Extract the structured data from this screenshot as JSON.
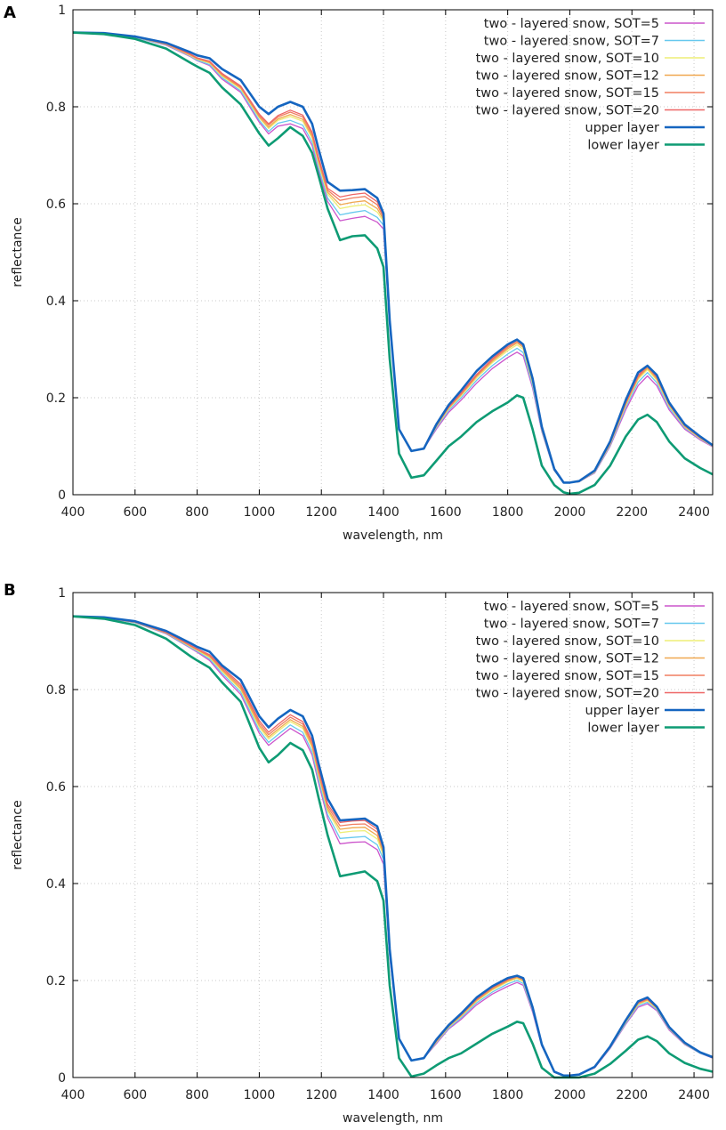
{
  "chart_data": [
    {
      "type": "line",
      "panel": "A",
      "xlabel": "wavelength, nm",
      "ylabel": "reflectance",
      "xlim": [
        400,
        2460
      ],
      "ylim": [
        0,
        1
      ],
      "xticks": [
        400,
        600,
        800,
        1000,
        1200,
        1400,
        1600,
        1800,
        2000,
        2200,
        2400
      ],
      "yticks": [
        0,
        0.2,
        0.4,
        0.6,
        0.8,
        1
      ],
      "ytick_labels": [
        "0",
        "0.2",
        "0.4",
        "0.6",
        "0.8",
        "1"
      ],
      "grid": true,
      "legend_position": "top-right",
      "x": [
        400,
        500,
        600,
        700,
        780,
        800,
        840,
        880,
        940,
        1000,
        1030,
        1060,
        1100,
        1140,
        1170,
        1190,
        1220,
        1260,
        1300,
        1340,
        1380,
        1400,
        1420,
        1450,
        1490,
        1530,
        1570,
        1610,
        1650,
        1700,
        1750,
        1800,
        1830,
        1850,
        1880,
        1910,
        1950,
        1980,
        2000,
        2030,
        2080,
        2130,
        2180,
        2220,
        2250,
        2280,
        2320,
        2370,
        2420,
        2460
      ],
      "series": [
        {
          "name": "two - layered snow, SOT=5",
          "color": "#cc55cc",
          "values": [
            0.953,
            0.951,
            0.943,
            0.927,
            0.903,
            0.895,
            0.885,
            0.857,
            0.83,
            0.768,
            0.744,
            0.76,
            0.765,
            0.755,
            0.72,
            0.67,
            0.605,
            0.565,
            0.57,
            0.574,
            0.562,
            0.548,
            0.35,
            0.135,
            0.09,
            0.095,
            0.135,
            0.17,
            0.195,
            0.23,
            0.26,
            0.283,
            0.294,
            0.286,
            0.22,
            0.13,
            0.05,
            0.025,
            0.025,
            0.027,
            0.045,
            0.1,
            0.175,
            0.225,
            0.245,
            0.225,
            0.175,
            0.135,
            0.113,
            0.099
          ]
        },
        {
          "name": "two - layered snow, SOT=7",
          "color": "#66c8ee",
          "values": [
            0.953,
            0.951,
            0.943,
            0.928,
            0.904,
            0.896,
            0.887,
            0.86,
            0.833,
            0.772,
            0.749,
            0.766,
            0.772,
            0.762,
            0.727,
            0.677,
            0.612,
            0.577,
            0.582,
            0.586,
            0.572,
            0.556,
            0.352,
            0.135,
            0.09,
            0.095,
            0.138,
            0.174,
            0.2,
            0.236,
            0.266,
            0.29,
            0.302,
            0.293,
            0.225,
            0.132,
            0.05,
            0.025,
            0.025,
            0.027,
            0.046,
            0.102,
            0.18,
            0.232,
            0.252,
            0.231,
            0.179,
            0.138,
            0.115,
            0.1
          ]
        },
        {
          "name": "two - layered snow, SOT=10",
          "color": "#eeee77",
          "values": [
            0.953,
            0.951,
            0.944,
            0.929,
            0.905,
            0.898,
            0.89,
            0.863,
            0.837,
            0.777,
            0.755,
            0.772,
            0.78,
            0.77,
            0.735,
            0.685,
            0.62,
            0.59,
            0.595,
            0.598,
            0.583,
            0.564,
            0.355,
            0.135,
            0.09,
            0.095,
            0.14,
            0.177,
            0.204,
            0.241,
            0.272,
            0.297,
            0.309,
            0.3,
            0.23,
            0.134,
            0.051,
            0.025,
            0.025,
            0.027,
            0.047,
            0.104,
            0.184,
            0.238,
            0.258,
            0.236,
            0.183,
            0.14,
            0.116,
            0.1
          ]
        },
        {
          "name": "two - layered snow, SOT=12",
          "color": "#f0a850",
          "values": [
            0.953,
            0.951,
            0.944,
            0.929,
            0.906,
            0.899,
            0.891,
            0.865,
            0.839,
            0.779,
            0.758,
            0.775,
            0.784,
            0.774,
            0.739,
            0.689,
            0.624,
            0.598,
            0.603,
            0.606,
            0.59,
            0.568,
            0.356,
            0.135,
            0.09,
            0.095,
            0.141,
            0.179,
            0.206,
            0.244,
            0.275,
            0.301,
            0.313,
            0.304,
            0.233,
            0.135,
            0.051,
            0.025,
            0.025,
            0.027,
            0.048,
            0.105,
            0.186,
            0.241,
            0.261,
            0.239,
            0.185,
            0.141,
            0.117,
            0.101
          ]
        },
        {
          "name": "two - layered snow, SOT=15",
          "color": "#f07e60",
          "values": [
            0.953,
            0.951,
            0.944,
            0.93,
            0.907,
            0.9,
            0.893,
            0.867,
            0.841,
            0.782,
            0.762,
            0.779,
            0.789,
            0.779,
            0.744,
            0.694,
            0.628,
            0.607,
            0.612,
            0.615,
            0.598,
            0.572,
            0.357,
            0.135,
            0.09,
            0.095,
            0.142,
            0.18,
            0.208,
            0.246,
            0.278,
            0.304,
            0.316,
            0.307,
            0.235,
            0.136,
            0.051,
            0.025,
            0.025,
            0.027,
            0.048,
            0.106,
            0.188,
            0.243,
            0.264,
            0.241,
            0.186,
            0.142,
            0.117,
            0.101
          ]
        },
        {
          "name": "two - layered snow, SOT=20",
          "color": "#ee6666",
          "values": [
            0.953,
            0.951,
            0.944,
            0.93,
            0.908,
            0.901,
            0.894,
            0.869,
            0.843,
            0.785,
            0.765,
            0.782,
            0.793,
            0.783,
            0.748,
            0.698,
            0.632,
            0.614,
            0.619,
            0.622,
            0.604,
            0.576,
            0.358,
            0.135,
            0.09,
            0.095,
            0.143,
            0.181,
            0.21,
            0.248,
            0.28,
            0.307,
            0.319,
            0.31,
            0.237,
            0.137,
            0.052,
            0.025,
            0.025,
            0.027,
            0.049,
            0.107,
            0.19,
            0.246,
            0.266,
            0.243,
            0.188,
            0.143,
            0.118,
            0.101
          ]
        },
        {
          "name": "upper layer",
          "color": "#1565c0",
          "values": [
            0.953,
            0.952,
            0.945,
            0.932,
            0.912,
            0.906,
            0.9,
            0.878,
            0.855,
            0.8,
            0.785,
            0.8,
            0.81,
            0.8,
            0.765,
            0.715,
            0.645,
            0.627,
            0.628,
            0.63,
            0.612,
            0.58,
            0.36,
            0.135,
            0.09,
            0.095,
            0.145,
            0.185,
            0.215,
            0.255,
            0.285,
            0.31,
            0.32,
            0.31,
            0.24,
            0.14,
            0.053,
            0.025,
            0.025,
            0.028,
            0.05,
            0.11,
            0.195,
            0.252,
            0.266,
            0.247,
            0.19,
            0.145,
            0.12,
            0.102
          ]
        },
        {
          "name": "lower layer",
          "color": "#0e9b74",
          "values": [
            0.953,
            0.95,
            0.94,
            0.92,
            0.89,
            0.883,
            0.87,
            0.84,
            0.805,
            0.745,
            0.72,
            0.735,
            0.758,
            0.74,
            0.705,
            0.66,
            0.59,
            0.525,
            0.533,
            0.535,
            0.508,
            0.47,
            0.28,
            0.085,
            0.035,
            0.04,
            0.07,
            0.1,
            0.12,
            0.15,
            0.172,
            0.19,
            0.205,
            0.2,
            0.135,
            0.06,
            0.02,
            0.005,
            0.002,
            0.004,
            0.02,
            0.06,
            0.12,
            0.155,
            0.165,
            0.15,
            0.11,
            0.075,
            0.055,
            0.042
          ]
        }
      ]
    },
    {
      "type": "line",
      "panel": "B",
      "xlabel": "wavelength, nm",
      "ylabel": "reflectance",
      "xlim": [
        400,
        2460
      ],
      "ylim": [
        0,
        1
      ],
      "xticks": [
        400,
        600,
        800,
        1000,
        1200,
        1400,
        1600,
        1800,
        2000,
        2200,
        2400
      ],
      "yticks": [
        0,
        0.2,
        0.4,
        0.6,
        0.8,
        1
      ],
      "ytick_labels": [
        "0",
        "0.2",
        "0.4",
        "0.6",
        "0.8",
        "1"
      ],
      "grid": true,
      "legend_position": "top-right",
      "x": [
        400,
        500,
        600,
        700,
        780,
        800,
        840,
        880,
        940,
        1000,
        1030,
        1060,
        1100,
        1140,
        1170,
        1190,
        1220,
        1260,
        1300,
        1340,
        1380,
        1400,
        1420,
        1450,
        1490,
        1530,
        1570,
        1610,
        1650,
        1700,
        1750,
        1800,
        1830,
        1850,
        1880,
        1910,
        1950,
        1980,
        2000,
        2030,
        2080,
        2130,
        2180,
        2220,
        2250,
        2280,
        2320,
        2370,
        2420,
        2460
      ],
      "series": [
        {
          "name": "two - layered snow, SOT=5",
          "color": "#cc55cc",
          "values": [
            0.951,
            0.948,
            0.938,
            0.915,
            0.885,
            0.877,
            0.86,
            0.83,
            0.79,
            0.71,
            0.685,
            0.7,
            0.72,
            0.705,
            0.665,
            0.61,
            0.535,
            0.482,
            0.485,
            0.486,
            0.47,
            0.44,
            0.25,
            0.08,
            0.035,
            0.04,
            0.07,
            0.1,
            0.12,
            0.15,
            0.172,
            0.188,
            0.196,
            0.19,
            0.135,
            0.065,
            0.012,
            0.004,
            0.004,
            0.006,
            0.02,
            0.06,
            0.11,
            0.145,
            0.152,
            0.138,
            0.098,
            0.068,
            0.05,
            0.04
          ]
        },
        {
          "name": "two - layered snow, SOT=7",
          "color": "#66c8ee",
          "values": [
            0.951,
            0.948,
            0.938,
            0.916,
            0.886,
            0.879,
            0.863,
            0.834,
            0.795,
            0.716,
            0.691,
            0.707,
            0.727,
            0.712,
            0.672,
            0.617,
            0.542,
            0.493,
            0.495,
            0.497,
            0.48,
            0.45,
            0.254,
            0.08,
            0.035,
            0.04,
            0.072,
            0.102,
            0.123,
            0.154,
            0.176,
            0.193,
            0.2,
            0.194,
            0.138,
            0.066,
            0.012,
            0.004,
            0.004,
            0.006,
            0.021,
            0.061,
            0.112,
            0.148,
            0.155,
            0.14,
            0.1,
            0.069,
            0.05,
            0.041
          ]
        },
        {
          "name": "two - layered snow, SOT=10",
          "color": "#eeee77",
          "values": [
            0.951,
            0.948,
            0.939,
            0.917,
            0.888,
            0.881,
            0.866,
            0.838,
            0.8,
            0.722,
            0.698,
            0.714,
            0.734,
            0.72,
            0.68,
            0.625,
            0.55,
            0.505,
            0.508,
            0.509,
            0.492,
            0.458,
            0.257,
            0.08,
            0.035,
            0.04,
            0.073,
            0.104,
            0.126,
            0.157,
            0.18,
            0.197,
            0.204,
            0.198,
            0.14,
            0.067,
            0.012,
            0.004,
            0.004,
            0.006,
            0.021,
            0.062,
            0.114,
            0.151,
            0.158,
            0.142,
            0.101,
            0.07,
            0.051,
            0.041
          ]
        },
        {
          "name": "two - layered snow, SOT=12",
          "color": "#f0a850",
          "values": [
            0.951,
            0.948,
            0.939,
            0.917,
            0.889,
            0.882,
            0.868,
            0.84,
            0.803,
            0.726,
            0.702,
            0.718,
            0.738,
            0.724,
            0.684,
            0.629,
            0.554,
            0.512,
            0.515,
            0.516,
            0.499,
            0.463,
            0.258,
            0.08,
            0.035,
            0.04,
            0.074,
            0.105,
            0.127,
            0.159,
            0.182,
            0.199,
            0.206,
            0.2,
            0.141,
            0.067,
            0.012,
            0.004,
            0.004,
            0.006,
            0.021,
            0.062,
            0.115,
            0.152,
            0.16,
            0.143,
            0.102,
            0.07,
            0.051,
            0.041
          ]
        },
        {
          "name": "two - layered snow, SOT=15",
          "color": "#f07e60",
          "values": [
            0.951,
            0.948,
            0.939,
            0.918,
            0.89,
            0.883,
            0.87,
            0.843,
            0.807,
            0.731,
            0.707,
            0.723,
            0.743,
            0.729,
            0.689,
            0.634,
            0.559,
            0.519,
            0.522,
            0.523,
            0.506,
            0.468,
            0.26,
            0.08,
            0.035,
            0.04,
            0.075,
            0.106,
            0.129,
            0.161,
            0.184,
            0.201,
            0.208,
            0.202,
            0.142,
            0.068,
            0.012,
            0.004,
            0.004,
            0.006,
            0.022,
            0.063,
            0.116,
            0.154,
            0.161,
            0.144,
            0.102,
            0.071,
            0.051,
            0.041
          ]
        },
        {
          "name": "two - layered snow, SOT=20",
          "color": "#ee6666",
          "values": [
            0.951,
            0.948,
            0.94,
            0.918,
            0.891,
            0.884,
            0.872,
            0.846,
            0.811,
            0.736,
            0.712,
            0.728,
            0.748,
            0.734,
            0.694,
            0.639,
            0.564,
            0.526,
            0.529,
            0.53,
            0.512,
            0.472,
            0.261,
            0.08,
            0.035,
            0.04,
            0.076,
            0.107,
            0.13,
            0.162,
            0.186,
            0.203,
            0.21,
            0.204,
            0.143,
            0.068,
            0.012,
            0.004,
            0.004,
            0.006,
            0.022,
            0.063,
            0.117,
            0.155,
            0.162,
            0.145,
            0.103,
            0.071,
            0.052,
            0.041
          ]
        },
        {
          "name": "upper layer",
          "color": "#1565c0",
          "values": [
            0.951,
            0.949,
            0.941,
            0.921,
            0.895,
            0.888,
            0.878,
            0.85,
            0.82,
            0.745,
            0.722,
            0.74,
            0.758,
            0.745,
            0.705,
            0.65,
            0.575,
            0.53,
            0.532,
            0.534,
            0.518,
            0.475,
            0.265,
            0.08,
            0.035,
            0.04,
            0.078,
            0.108,
            0.132,
            0.165,
            0.188,
            0.205,
            0.21,
            0.205,
            0.145,
            0.068,
            0.012,
            0.004,
            0.004,
            0.006,
            0.022,
            0.064,
            0.118,
            0.157,
            0.165,
            0.146,
            0.104,
            0.072,
            0.052,
            0.042
          ]
        },
        {
          "name": "lower layer",
          "color": "#0e9b74",
          "values": [
            0.951,
            0.946,
            0.933,
            0.905,
            0.868,
            0.86,
            0.845,
            0.815,
            0.775,
            0.68,
            0.65,
            0.665,
            0.69,
            0.675,
            0.635,
            0.58,
            0.5,
            0.415,
            0.42,
            0.425,
            0.405,
            0.365,
            0.19,
            0.04,
            0.002,
            0.008,
            0.025,
            0.04,
            0.05,
            0.07,
            0.09,
            0.105,
            0.115,
            0.112,
            0.07,
            0.02,
            0.0,
            0.0,
            0.0,
            0.0,
            0.008,
            0.028,
            0.055,
            0.078,
            0.085,
            0.075,
            0.05,
            0.03,
            0.018,
            0.012
          ]
        }
      ]
    }
  ],
  "panels": [
    {
      "letter": "A"
    },
    {
      "letter": "B"
    }
  ]
}
